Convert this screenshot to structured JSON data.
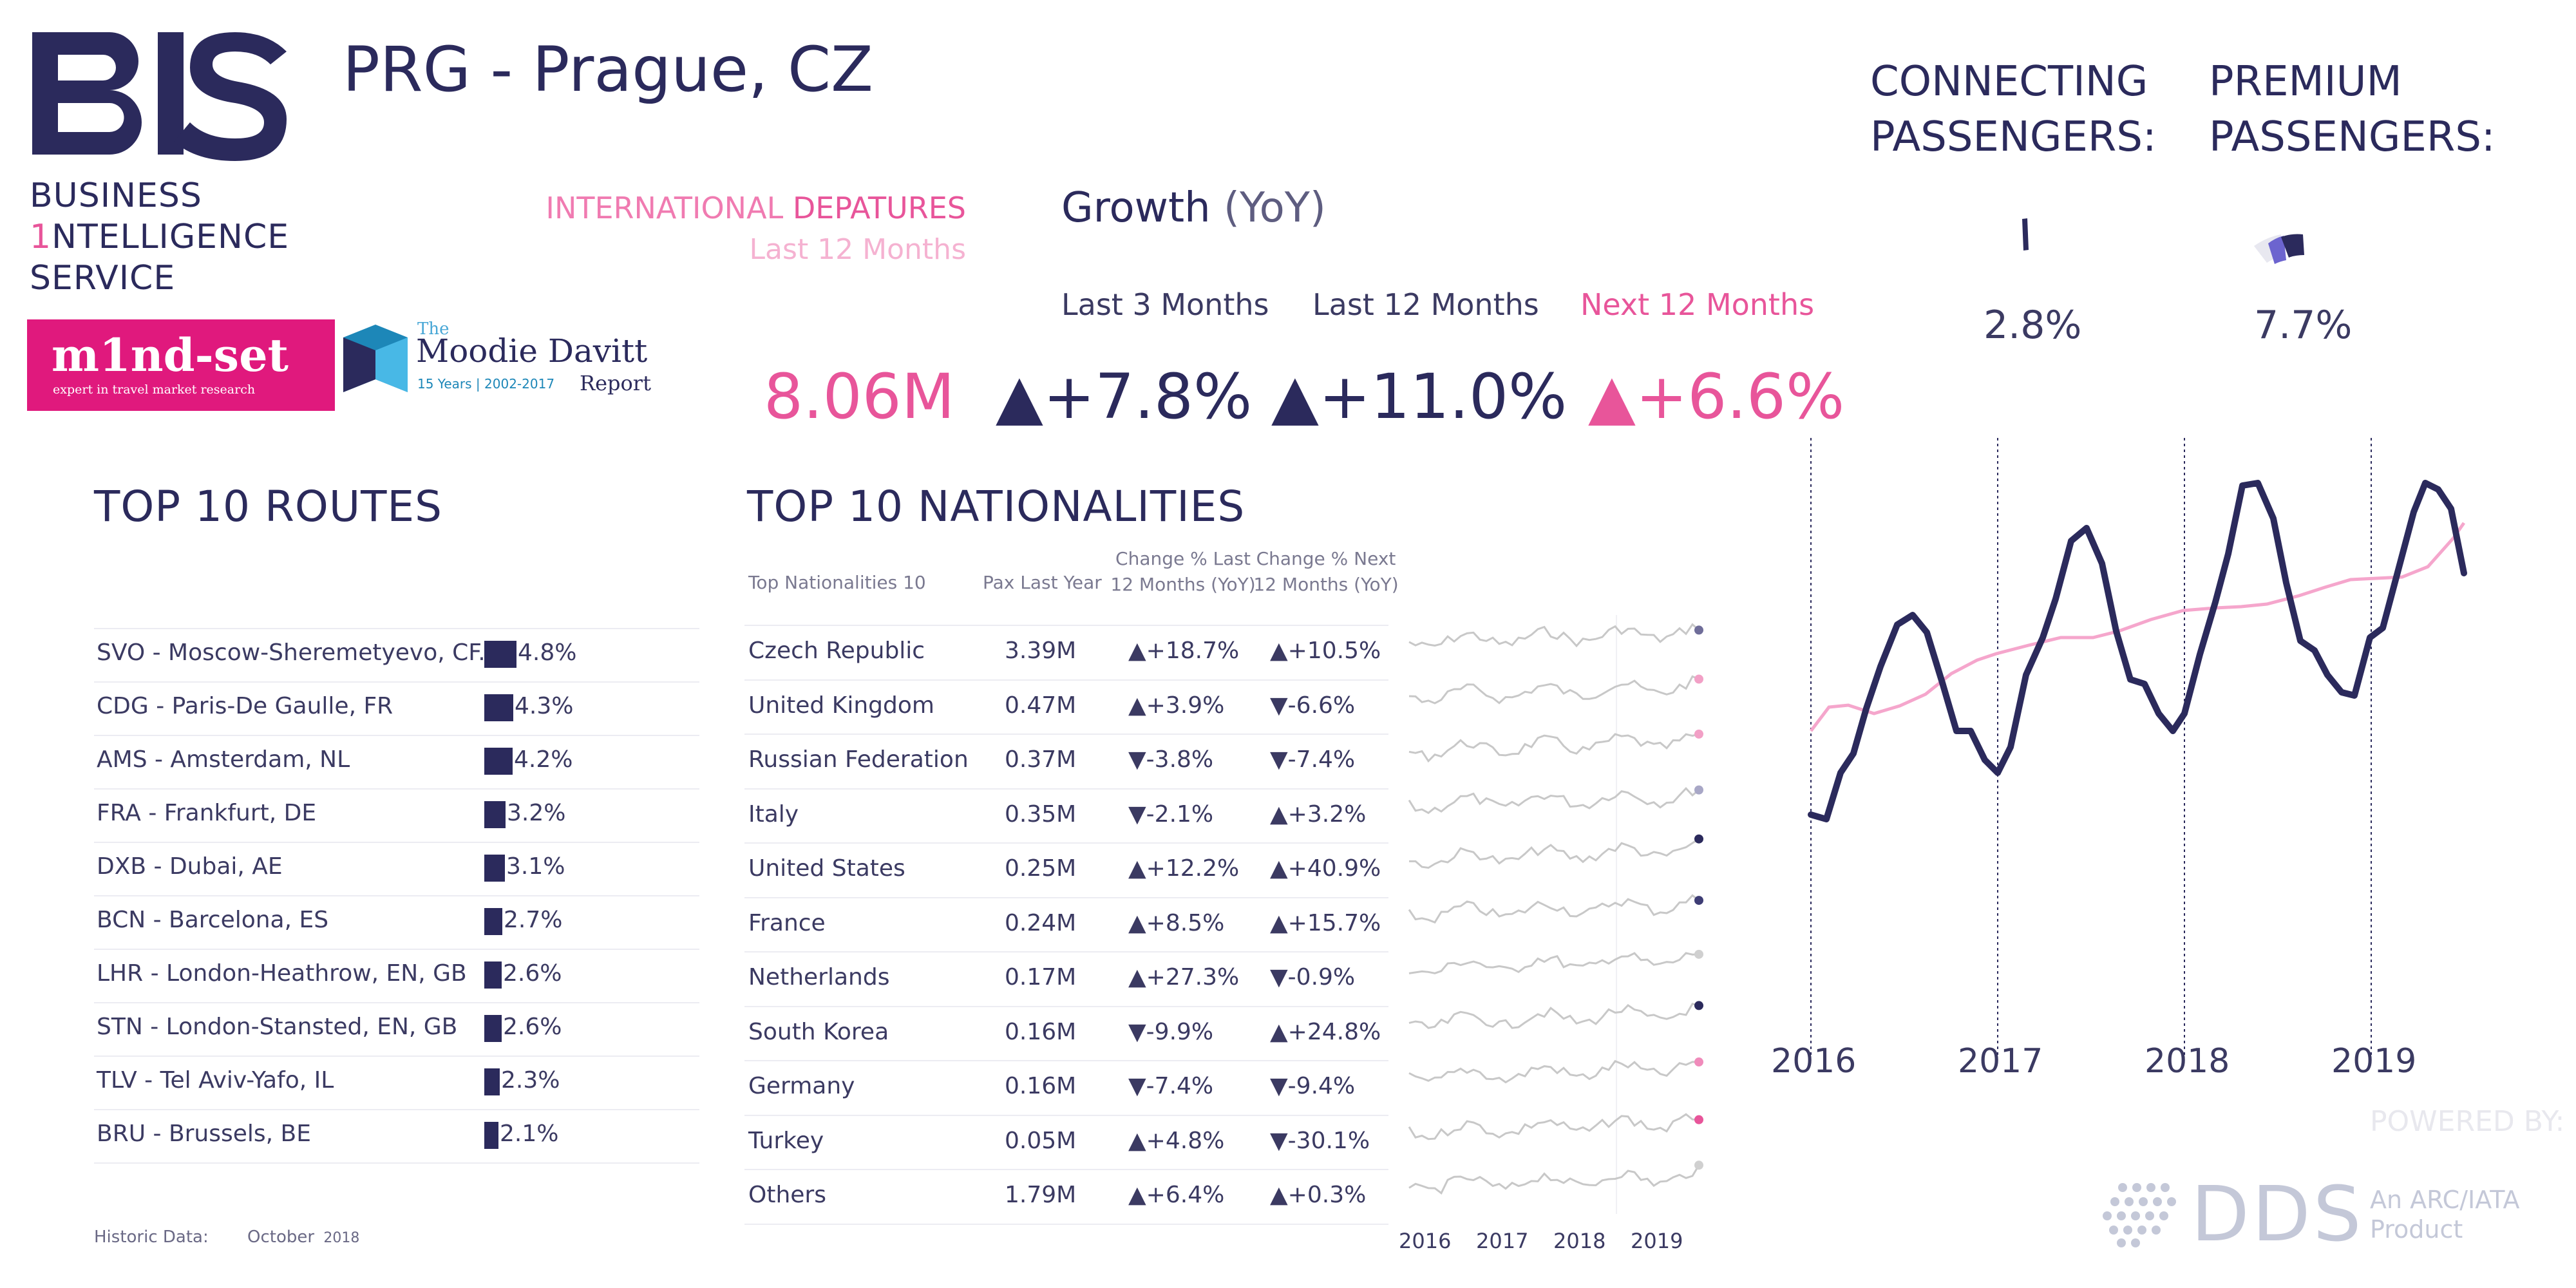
{
  "brand": {
    "logo_text": "BIS",
    "line1": "BUSINESS",
    "line2_first": "1",
    "line2_rest": "NTELLIGENCE",
    "line3": "SERVICE"
  },
  "partners": {
    "mindset_title": "m1nd-set",
    "mindset_sub": "expert in travel market research",
    "moodie_the": "The",
    "moodie_name": "Moodie Davitt",
    "moodie_years": "15 Years | 2002-2017",
    "moodie_report": "Report"
  },
  "airport": {
    "title": "PRG - Prague, CZ"
  },
  "departures": {
    "label_a": "INTERNATIONAL",
    "label_b": "DEPATURES",
    "period": "Last 12 Months",
    "value": "8.06M"
  },
  "growth": {
    "title": "Growth",
    "title_suffix": "(YoY)",
    "columns": [
      {
        "label": "Last 3 Months",
        "value": "+7.8%",
        "arrow": "▲",
        "color": "#2b2a5c"
      },
      {
        "label": "Last 12 Months",
        "value": "+11.0%",
        "arrow": "▲",
        "color": "#2b2a5c"
      },
      {
        "label": "Next 12 Months",
        "value": "+6.6%",
        "arrow": "▲",
        "color": "#e8559a"
      }
    ]
  },
  "connecting": {
    "label_1": "CONNECTING",
    "label_2": "PASSENGERS:",
    "value": "2.8%",
    "share": 0.028
  },
  "premium": {
    "label_1": "PREMIUM",
    "label_2": "PASSENGERS:",
    "value": "7.7%",
    "share": 0.077
  },
  "routes": {
    "title": "TOP 10 ROUTES",
    "items": [
      {
        "name": "SVO - Moscow-Sheremetyevo, CF..",
        "value": "4.8%",
        "share": 4.8
      },
      {
        "name": "CDG - Paris-De Gaulle, FR",
        "value": "4.3%",
        "share": 4.3
      },
      {
        "name": "AMS - Amsterdam, NL",
        "value": "4.2%",
        "share": 4.2
      },
      {
        "name": "FRA - Frankfurt, DE",
        "value": "3.2%",
        "share": 3.2
      },
      {
        "name": "DXB - Dubai, AE",
        "value": "3.1%",
        "share": 3.1
      },
      {
        "name": "BCN - Barcelona, ES",
        "value": "2.7%",
        "share": 2.7
      },
      {
        "name": "LHR - London-Heathrow, EN, GB",
        "value": "2.6%",
        "share": 2.6
      },
      {
        "name": "STN - London-Stansted, EN, GB",
        "value": "2.6%",
        "share": 2.6
      },
      {
        "name": "TLV - Tel Aviv-Yafo, IL",
        "value": "2.3%",
        "share": 2.3
      },
      {
        "name": "BRU - Brussels, BE",
        "value": "2.1%",
        "share": 2.1
      }
    ]
  },
  "nationalities": {
    "title": "TOP 10 NATIONALITIES",
    "headers": {
      "name": "Top Nationalities 10",
      "pax": "Pax Last Year",
      "last": "Change % Last 12 Months (YoY)",
      "next": "Change % Next 12 Months (YoY)"
    },
    "rows": [
      {
        "name": "Czech Republic",
        "pax": "3.39M",
        "last": "▲+18.7%",
        "next": "▲+10.5%",
        "dot": "#6f6d99"
      },
      {
        "name": "United Kingdom",
        "pax": "0.47M",
        "last": "▲+3.9%",
        "next": "▼-6.6%",
        "dot": "#f2a0c6"
      },
      {
        "name": "Russian Federation",
        "pax": "0.37M",
        "last": "▼-3.8%",
        "next": "▼-7.4%",
        "dot": "#f2a0c6"
      },
      {
        "name": "Italy",
        "pax": "0.35M",
        "last": "▼-2.1%",
        "next": "▲+3.2%",
        "dot": "#a8a7c6"
      },
      {
        "name": "United States",
        "pax": "0.25M",
        "last": "▲+12.2%",
        "next": "▲+40.9%",
        "dot": "#2b2a5c"
      },
      {
        "name": "France",
        "pax": "0.24M",
        "last": "▲+8.5%",
        "next": "▲+15.7%",
        "dot": "#3e3d75"
      },
      {
        "name": "Netherlands",
        "pax": "0.17M",
        "last": "▲+27.3%",
        "next": "▼-0.9%",
        "dot": "#d0d0d0"
      },
      {
        "name": "South Korea",
        "pax": "0.16M",
        "last": "▼-9.9%",
        "next": "▲+24.8%",
        "dot": "#2b2a5c"
      },
      {
        "name": "Germany",
        "pax": "0.16M",
        "last": "▼-7.4%",
        "next": "▼-9.4%",
        "dot": "#f08bbb"
      },
      {
        "name": "Turkey",
        "pax": "0.05M",
        "last": "▲+4.8%",
        "next": "▼-30.1%",
        "dot": "#e8559a"
      },
      {
        "name": "Others",
        "pax": "1.79M",
        "last": "▲+6.4%",
        "next": "▲+0.3%",
        "dot": "#d0d0d0"
      }
    ],
    "spark_years": [
      "2016",
      "2017",
      "2018",
      "2019"
    ]
  },
  "trend_chart": {
    "years": [
      "2016",
      "2017",
      "2018",
      "2019"
    ]
  },
  "footer": {
    "historic_label": "Historic Data:",
    "historic_month": "October",
    "historic_year": "2018",
    "powered_by": "POWERED BY:",
    "dds": "DDS",
    "dds_sub1": "An ARC/IATA",
    "dds_sub2": "Product"
  },
  "colors": {
    "navy": "#2b2a5c",
    "pink": "#e8559a",
    "light_pink": "#f5b2d1",
    "gray": "#7a7990"
  }
}
